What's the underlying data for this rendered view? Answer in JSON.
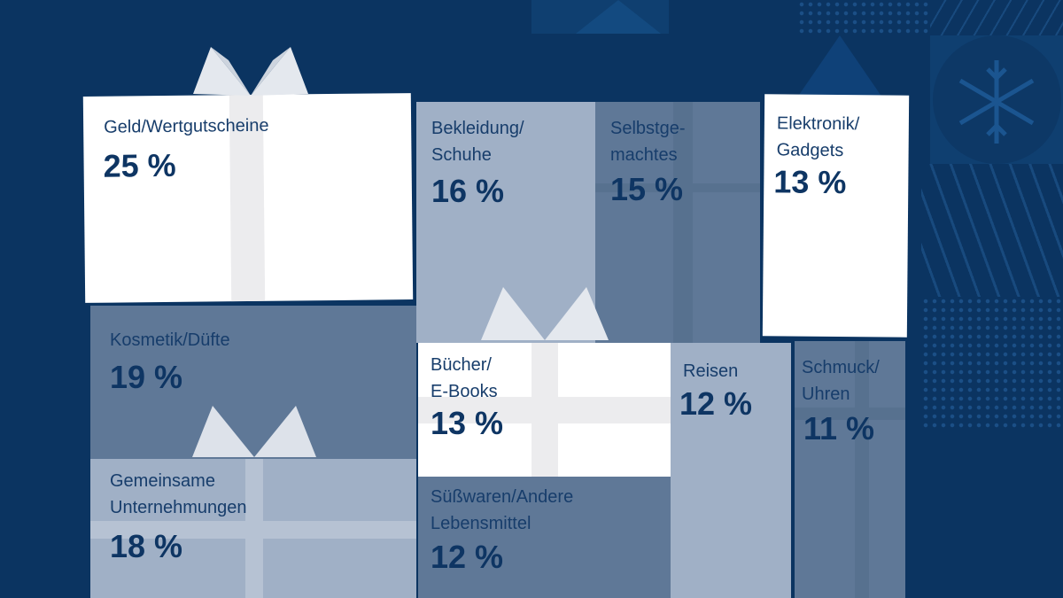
{
  "colors": {
    "background": "#0b3461",
    "text": "#0e3563",
    "white_box": "#ffffff",
    "light_box": "#a0b0c6",
    "dark_box": "#5f7897",
    "ribbon": "#e8eaee"
  },
  "boxes": [
    {
      "label": "Geld/Wertgutscheine",
      "value": "25 %"
    },
    {
      "label": "Bekleidung/\nSchuhe",
      "value": "16 %"
    },
    {
      "label": "Selbstge-\nmachtes",
      "value": "15 %"
    },
    {
      "label": "Elektronik/\nGadgets",
      "value": "13 %"
    },
    {
      "label": "Kosmetik/Düfte",
      "value": "19 %"
    },
    {
      "label": "Gemeinsame\nUnternehmungen",
      "value": "18 %"
    },
    {
      "label": "Bücher/\nE-Books",
      "value": "13 %"
    },
    {
      "label": "Süßwaren/Andere\nLebensmittel",
      "value": "12 %"
    },
    {
      "label": "Reisen",
      "value": "12 %"
    },
    {
      "label": "Schmuck/\nUhren",
      "value": "11 %"
    }
  ],
  "chart_data": {
    "type": "bar",
    "categories": [
      "Geld/Wertgutscheine",
      "Bekleidung/Schuhe",
      "Selbstgemachtes",
      "Elektronik/Gadgets",
      "Kosmetik/Düfte",
      "Gemeinsame Unternehmungen",
      "Bücher/E-Books",
      "Süßwaren/Andere Lebensmittel",
      "Reisen",
      "Schmuck/Uhren"
    ],
    "values": [
      25,
      16,
      15,
      13,
      19,
      18,
      13,
      12,
      12,
      11
    ],
    "unit": "%"
  }
}
